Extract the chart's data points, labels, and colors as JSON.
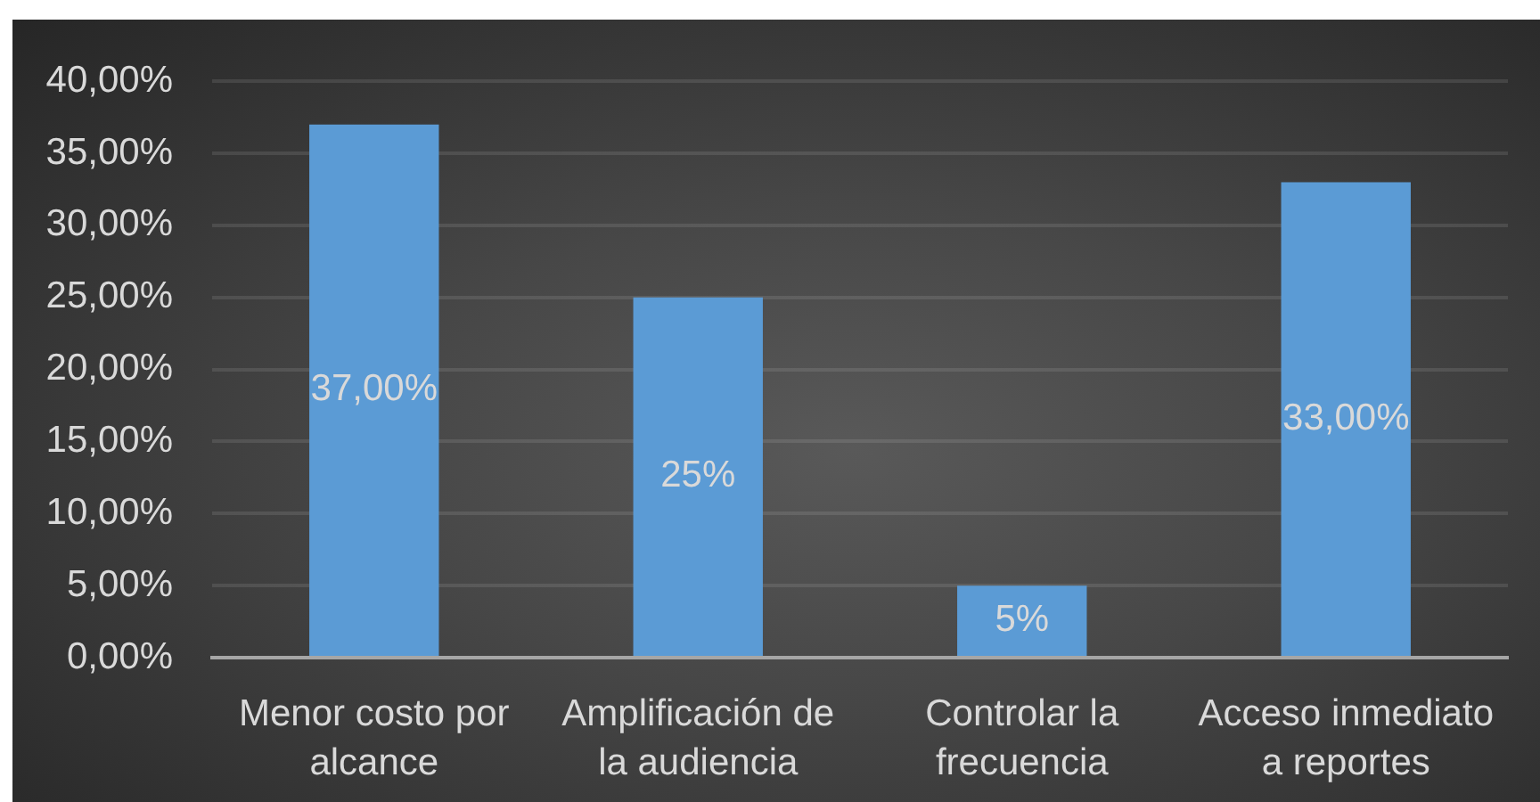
{
  "chart_data": {
    "type": "bar",
    "categories": [
      "Menor costo por alcance",
      "Amplificación de la audiencia",
      "Controlar la frecuencia",
      "Acceso inmediato a reportes"
    ],
    "values": [
      37,
      25,
      5,
      33
    ],
    "value_labels": [
      "37,00%",
      "25%",
      "5%",
      "33,00%"
    ],
    "color": "#5b9bd5",
    "ylim": [
      0,
      40
    ],
    "yticks": [
      {
        "value": 0,
        "label": "0,00%"
      },
      {
        "value": 5,
        "label": "5,00%"
      },
      {
        "value": 10,
        "label": "10,00%"
      },
      {
        "value": 15,
        "label": "15,00%"
      },
      {
        "value": 20,
        "label": "20,00%"
      },
      {
        "value": 25,
        "label": "25,00%"
      },
      {
        "value": 30,
        "label": "30,00%"
      },
      {
        "value": 35,
        "label": "35,00%"
      },
      {
        "value": 40,
        "label": "40,00%"
      }
    ],
    "grid": "y"
  }
}
